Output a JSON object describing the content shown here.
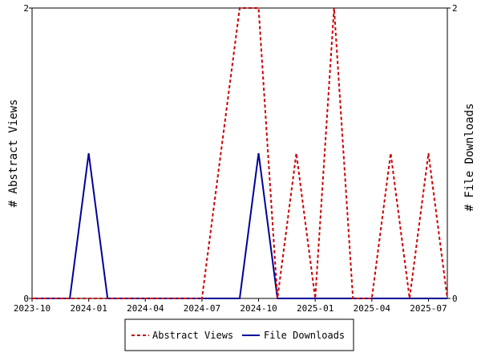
{
  "chart_data": {
    "type": "line",
    "x": [
      "2023-10",
      "2023-11",
      "2023-12",
      "2024-01",
      "2024-02",
      "2024-03",
      "2024-04",
      "2024-05",
      "2024-06",
      "2024-07",
      "2024-08",
      "2024-09",
      "2024-10",
      "2024-11",
      "2024-12",
      "2025-01",
      "2025-02",
      "2025-03",
      "2025-04",
      "2025-05",
      "2025-06",
      "2025-07",
      "2025-08"
    ],
    "series": [
      {
        "name": "Abstract Views",
        "axis": "left",
        "color": "#cc0000",
        "dash": true,
        "values": [
          0,
          0,
          0,
          0,
          0,
          0,
          0,
          0,
          0,
          0,
          1,
          2,
          2,
          0,
          1,
          0,
          2,
          0,
          0,
          1,
          0,
          1,
          0
        ]
      },
      {
        "name": "File Downloads",
        "axis": "right",
        "color": "#000099",
        "dash": false,
        "values": [
          0,
          0,
          0,
          1,
          0,
          0,
          0,
          0,
          0,
          0,
          0,
          0,
          1,
          0,
          0,
          0,
          0,
          0,
          0,
          0,
          0,
          0,
          0
        ]
      }
    ],
    "x_ticks": [
      "2023-10",
      "2024-01",
      "2024-04",
      "2024-07",
      "2024-10",
      "2025-01",
      "2025-04",
      "2025-07"
    ],
    "y_left": {
      "label": "# Abstract Views",
      "ticks": [
        0,
        2
      ],
      "ylim": [
        0,
        2
      ]
    },
    "y_right": {
      "label": "# File Downloads",
      "ticks": [
        0,
        2
      ],
      "ylim": [
        0,
        2
      ]
    },
    "grid": false,
    "legend_position": "bottom-center"
  }
}
